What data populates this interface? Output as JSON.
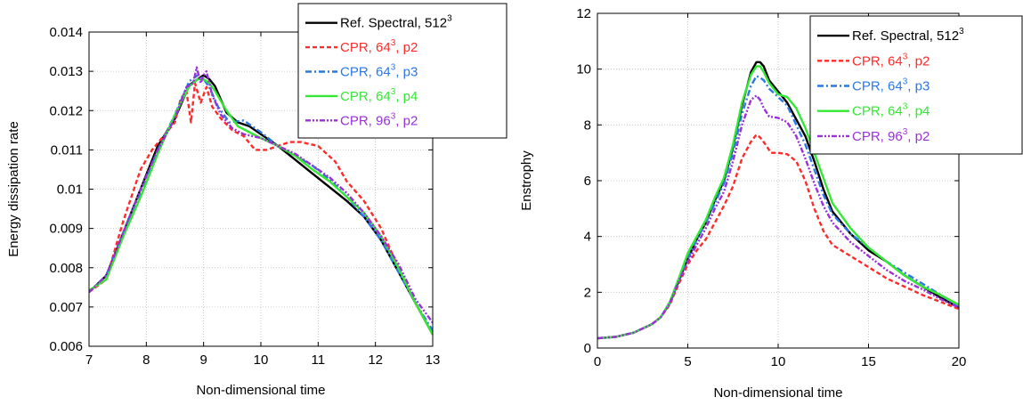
{
  "chart_data": [
    {
      "type": "line",
      "xlabel": "Non-dimensional time",
      "ylabel": "Energy dissipation rate",
      "xlim": [
        7,
        13
      ],
      "ylim": [
        0.006,
        0.014
      ],
      "xticks": [
        "7",
        "8",
        "9",
        "10",
        "11",
        "12",
        "13"
      ],
      "yticks": [
        "0.006",
        "0.007",
        "0.008",
        "0.009",
        "0.01",
        "0.011",
        "0.012",
        "0.013",
        "0.014"
      ],
      "grid": true,
      "legend_position": "top-right",
      "series": [
        {
          "name": "Ref. Spectral, 512",
          "sup": "3",
          "suffix": "",
          "color": "#000000",
          "dash": "solid",
          "x": [
            7.0,
            7.3,
            7.6,
            7.9,
            8.2,
            8.5,
            8.75,
            8.9,
            9.0,
            9.1,
            9.2,
            9.4,
            9.6,
            9.8,
            10.0,
            10.3,
            10.6,
            10.9,
            11.2,
            11.5,
            11.8,
            12.1,
            12.4,
            12.7,
            13.0
          ],
          "y": [
            0.00738,
            0.0078,
            0.0089,
            0.01,
            0.0111,
            0.0118,
            0.01265,
            0.0128,
            0.0129,
            0.0128,
            0.01262,
            0.01195,
            0.0117,
            0.0116,
            0.0114,
            0.0111,
            0.01075,
            0.0104,
            0.01005,
            0.0097,
            0.0093,
            0.0087,
            0.0079,
            0.0071,
            0.0063
          ]
        },
        {
          "name": "CPR, 64",
          "sup": "3",
          "suffix": ", p2",
          "color": "#ff2a2a",
          "dash": "5,3",
          "x": [
            7.0,
            7.3,
            7.6,
            7.9,
            8.1,
            8.3,
            8.5,
            8.6,
            8.7,
            8.78,
            8.85,
            8.95,
            9.05,
            9.15,
            9.3,
            9.5,
            9.7,
            9.9,
            10.1,
            10.3,
            10.5,
            10.7,
            11.0,
            11.3,
            11.5,
            11.8,
            12.1,
            12.4,
            12.7,
            13.0
          ],
          "y": [
            0.00738,
            0.0077,
            0.0092,
            0.0105,
            0.011,
            0.01135,
            0.0117,
            0.0123,
            0.0125,
            0.0117,
            0.0127,
            0.0122,
            0.0126,
            0.0121,
            0.0118,
            0.0115,
            0.01135,
            0.011,
            0.011,
            0.0111,
            0.0112,
            0.0112,
            0.0111,
            0.0107,
            0.0102,
            0.0097,
            0.009,
            0.008,
            0.0071,
            0.0063
          ]
        },
        {
          "name": "CPR, 64",
          "sup": "3",
          "suffix": ", p3",
          "color": "#2b78e4",
          "dash": "7,3,2,3",
          "x": [
            7.0,
            7.3,
            7.6,
            7.9,
            8.2,
            8.5,
            8.75,
            8.9,
            9.0,
            9.1,
            9.25,
            9.45,
            9.7,
            10.0,
            10.3,
            10.6,
            10.9,
            11.2,
            11.5,
            11.8,
            12.1,
            12.4,
            12.7,
            13.0
          ],
          "y": [
            0.00738,
            0.0078,
            0.0089,
            0.0099,
            0.011,
            0.0119,
            0.01275,
            0.0129,
            0.0128,
            0.0126,
            0.0121,
            0.0117,
            0.01175,
            0.01145,
            0.0111,
            0.01085,
            0.0106,
            0.01025,
            0.0098,
            0.0093,
            0.0087,
            0.0079,
            0.0071,
            0.0064
          ]
        },
        {
          "name": "CPR, 64",
          "sup": "3",
          "suffix": ", p4",
          "color": "#33e833",
          "dash": "solid",
          "x": [
            7.0,
            7.3,
            7.6,
            7.9,
            8.2,
            8.5,
            8.75,
            8.9,
            9.0,
            9.1,
            9.2,
            9.4,
            9.6,
            9.8,
            10.0,
            10.3,
            10.6,
            10.9,
            11.2,
            11.5,
            11.8,
            12.1,
            12.4,
            12.7,
            13.0
          ],
          "y": [
            0.00742,
            0.0077,
            0.0088,
            0.0098,
            0.0109,
            0.0119,
            0.01262,
            0.0128,
            0.0128,
            0.0127,
            0.0125,
            0.012,
            0.0116,
            0.01145,
            0.0113,
            0.0111,
            0.01085,
            0.0105,
            0.0102,
            0.0098,
            0.0094,
            0.0088,
            0.008,
            0.0071,
            0.0063
          ]
        },
        {
          "name": "CPR, 96",
          "sup": "3",
          "suffix": ", p2",
          "color": "#9b30d9",
          "dash": "6,2,2,2,2,2",
          "x": [
            7.0,
            7.3,
            7.6,
            7.9,
            8.2,
            8.5,
            8.7,
            8.82,
            8.88,
            8.95,
            9.0,
            9.05,
            9.15,
            9.3,
            9.5,
            9.7,
            10.0,
            10.3,
            10.6,
            10.9,
            11.2,
            11.5,
            11.8,
            12.1,
            12.4,
            12.7,
            13.0
          ],
          "y": [
            0.00738,
            0.0078,
            0.0089,
            0.01,
            0.011,
            0.0118,
            0.0126,
            0.0127,
            0.0131,
            0.0127,
            0.0129,
            0.013,
            0.0124,
            0.0119,
            0.01155,
            0.0114,
            0.0113,
            0.0111,
            0.0109,
            0.0106,
            0.0103,
            0.0099,
            0.0094,
            0.0088,
            0.0081,
            0.0072,
            0.0066
          ]
        }
      ]
    },
    {
      "type": "line",
      "xlabel": "Non-dimensional time",
      "ylabel": "Enstrophy",
      "xlim": [
        0,
        20
      ],
      "ylim": [
        0,
        12
      ],
      "xticks": [
        "0",
        "5",
        "10",
        "15",
        "20"
      ],
      "yticks": [
        "0",
        "2",
        "4",
        "6",
        "8",
        "10",
        "12"
      ],
      "grid": true,
      "legend_position": "top-right",
      "series": [
        {
          "name": "Ref. Spectral, 512",
          "sup": "3",
          "suffix": "",
          "color": "#000000",
          "dash": "solid",
          "x": [
            0,
            1,
            2,
            3,
            3.5,
            4,
            4.5,
            5,
            5.5,
            6,
            6.5,
            7,
            7.5,
            8,
            8.5,
            8.8,
            9,
            9.2,
            9.5,
            10,
            10.5,
            11,
            11.5,
            12,
            12.5,
            13,
            14,
            15,
            16,
            17,
            18,
            19,
            20
          ],
          "y": [
            0.35,
            0.4,
            0.55,
            0.85,
            1.1,
            1.6,
            2.4,
            3.2,
            3.9,
            4.5,
            5.3,
            6.0,
            7.2,
            8.7,
            9.9,
            10.25,
            10.25,
            10.1,
            9.6,
            9.2,
            8.8,
            8.2,
            7.6,
            6.7,
            5.7,
            4.9,
            4.1,
            3.5,
            3.1,
            2.6,
            2.2,
            1.8,
            1.45
          ]
        },
        {
          "name": "CPR, 64",
          "sup": "3",
          "suffix": ", p2",
          "color": "#ff2a2a",
          "dash": "5,3",
          "x": [
            0,
            1,
            2,
            3,
            3.5,
            4,
            4.5,
            5,
            5.5,
            6,
            6.5,
            7,
            7.5,
            8,
            8.5,
            8.8,
            9,
            9.3,
            9.6,
            10,
            10.5,
            11,
            11.5,
            12,
            12.5,
            13,
            14,
            15,
            16,
            17,
            18,
            19,
            20
          ],
          "y": [
            0.35,
            0.4,
            0.55,
            0.85,
            1.1,
            1.55,
            2.3,
            3.0,
            3.5,
            3.9,
            4.5,
            5.1,
            5.8,
            6.8,
            7.4,
            7.65,
            7.55,
            7.3,
            7.0,
            7.0,
            6.95,
            6.7,
            6.0,
            5.0,
            4.2,
            3.7,
            3.3,
            2.9,
            2.5,
            2.2,
            1.9,
            1.65,
            1.4
          ]
        },
        {
          "name": "CPR, 64",
          "sup": "3",
          "suffix": ", p3",
          "color": "#2b78e4",
          "dash": "7,3,2,3",
          "x": [
            0,
            1,
            2,
            3,
            3.5,
            4,
            4.5,
            5,
            5.5,
            6,
            6.5,
            7,
            7.5,
            8,
            8.5,
            8.8,
            9,
            9.2,
            9.5,
            10,
            10.5,
            11,
            11.5,
            12,
            12.5,
            13,
            14,
            15,
            16,
            17,
            18,
            19,
            20
          ],
          "y": [
            0.35,
            0.4,
            0.55,
            0.85,
            1.1,
            1.6,
            2.4,
            3.2,
            3.9,
            4.5,
            5.2,
            5.9,
            7.0,
            8.4,
            9.4,
            9.75,
            9.7,
            9.6,
            9.3,
            9.0,
            8.7,
            8.0,
            7.3,
            6.4,
            5.5,
            4.8,
            4.1,
            3.6,
            3.1,
            2.7,
            2.3,
            1.9,
            1.5
          ]
        },
        {
          "name": "CPR, 64",
          "sup": "3",
          "suffix": ", p4",
          "color": "#33e833",
          "dash": "solid",
          "x": [
            0,
            1,
            2,
            3,
            3.5,
            4,
            4.5,
            5,
            5.5,
            6,
            6.5,
            7,
            7.5,
            8,
            8.5,
            8.8,
            9,
            9.2,
            9.5,
            10,
            10.5,
            11,
            11.5,
            12,
            12.5,
            13,
            14,
            15,
            16,
            17,
            18,
            19,
            20
          ],
          "y": [
            0.35,
            0.4,
            0.55,
            0.85,
            1.1,
            1.65,
            2.5,
            3.4,
            4.0,
            4.6,
            5.4,
            6.1,
            7.3,
            8.8,
            9.8,
            10.1,
            10.1,
            9.9,
            9.5,
            9.1,
            9.0,
            8.6,
            7.9,
            7.0,
            6.1,
            5.2,
            4.3,
            3.6,
            3.1,
            2.6,
            2.2,
            1.9,
            1.55
          ]
        },
        {
          "name": "CPR, 96",
          "sup": "3",
          "suffix": ", p2",
          "color": "#9b30d9",
          "dash": "6,2,2,2,2,2",
          "x": [
            0,
            1,
            2,
            3,
            3.5,
            4,
            4.5,
            5,
            5.5,
            6,
            6.5,
            7,
            7.5,
            8,
            8.5,
            8.8,
            9,
            9.2,
            9.5,
            10,
            10.5,
            11,
            11.5,
            12,
            12.5,
            13,
            14,
            15,
            16,
            17,
            18,
            19,
            20
          ],
          "y": [
            0.35,
            0.4,
            0.55,
            0.85,
            1.1,
            1.6,
            2.4,
            3.1,
            3.7,
            4.3,
            5.0,
            5.6,
            6.7,
            8.0,
            8.9,
            9.05,
            8.9,
            8.6,
            8.3,
            8.25,
            8.1,
            7.6,
            6.8,
            5.9,
            5.1,
            4.5,
            3.8,
            3.3,
            2.8,
            2.4,
            2.1,
            1.75,
            1.45
          ]
        }
      ]
    }
  ]
}
